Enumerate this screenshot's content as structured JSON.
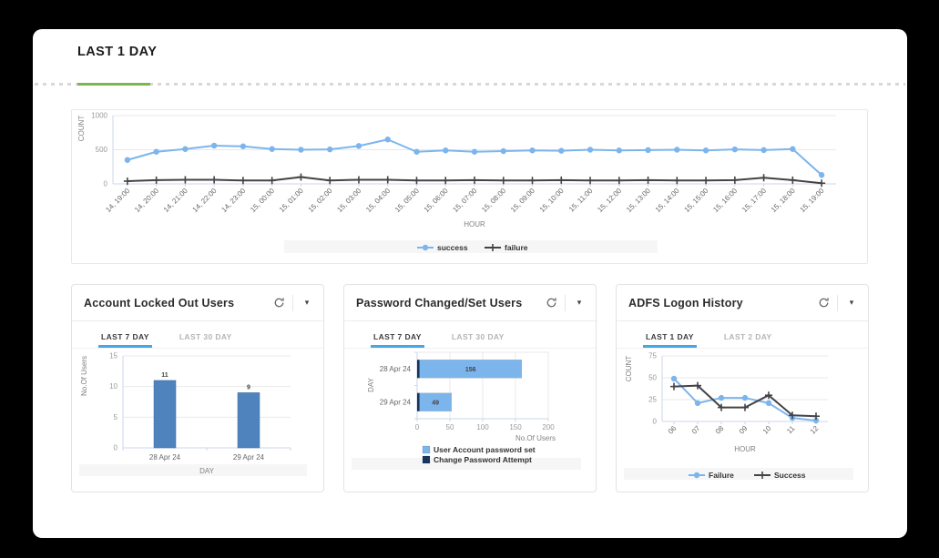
{
  "page": {
    "title": "LAST 1 DAY"
  },
  "icons": {
    "refresh": "refresh-icon",
    "caret": "▾"
  },
  "colors": {
    "accent_green": "#7eb54e",
    "tab_active_underline": "#45a7e8",
    "line_blue": "#7cb5ec",
    "line_dark": "#434348",
    "bar_blue": "#4e83bd",
    "stack_light_blue": "#7cb5ec",
    "stack_dark_navy": "#17375e"
  },
  "panels": [
    {
      "title": "Account Locked Out Users",
      "tabs": [
        {
          "label": "LAST 7 DAY",
          "active": true
        },
        {
          "label": "LAST 30 DAY",
          "active": false
        }
      ]
    },
    {
      "title": "Password Changed/Set Users",
      "tabs": [
        {
          "label": "LAST 7 DAY",
          "active": true
        },
        {
          "label": "LAST 30 DAY",
          "active": false
        }
      ]
    },
    {
      "title": "ADFS Logon History",
      "tabs": [
        {
          "label": "LAST 1 DAY",
          "active": true
        },
        {
          "label": "LAST 2 DAY",
          "active": false
        }
      ]
    }
  ],
  "chart_data": [
    {
      "type": "line",
      "categories": [
        "14, 19:00",
        "14, 20:00",
        "14, 21:00",
        "14, 22:00",
        "14, 23:00",
        "15, 00:00",
        "15, 01:00",
        "15, 02:00",
        "15, 03:00",
        "15, 04:00",
        "15, 05:00",
        "15, 06:00",
        "15, 07:00",
        "15, 08:00",
        "15, 09:00",
        "15, 10:00",
        "15, 11:00",
        "15, 12:00",
        "15, 13:00",
        "15, 14:00",
        "15, 15:00",
        "15, 16:00",
        "15, 17:00",
        "15, 18:00",
        "15, 19:00"
      ],
      "series": [
        {
          "name": "success",
          "color": "#7cb5ec",
          "marker": "circle",
          "values": [
            350,
            470,
            510,
            560,
            550,
            510,
            500,
            505,
            555,
            650,
            470,
            490,
            470,
            480,
            490,
            485,
            500,
            490,
            495,
            500,
            490,
            505,
            495,
            510,
            130
          ]
        },
        {
          "name": "failure",
          "color": "#434348",
          "marker": "plus",
          "values": [
            40,
            55,
            60,
            60,
            50,
            50,
            100,
            50,
            60,
            60,
            50,
            50,
            55,
            50,
            50,
            55,
            50,
            50,
            55,
            50,
            50,
            55,
            90,
            55,
            10
          ]
        }
      ],
      "xlabel": "HOUR",
      "ylabel": "COUNT",
      "ylim": [
        0,
        1000
      ],
      "yticks": [
        0,
        500,
        1000
      ],
      "grid": true,
      "legend_position": "bottom"
    },
    {
      "type": "bar",
      "categories": [
        "28 Apr 24",
        "29 Apr 24"
      ],
      "values": [
        11,
        9
      ],
      "bar_color": "#4e83bd",
      "data_labels": [
        11,
        9
      ],
      "xlabel": "DAY",
      "ylabel": "No.Of Users",
      "ylim": [
        0,
        15
      ],
      "yticks": [
        0,
        5,
        10,
        15
      ],
      "grid": true
    },
    {
      "type": "bar",
      "orientation": "horizontal-stacked",
      "categories": [
        "28 Apr 24",
        "29 Apr 24"
      ],
      "series": [
        {
          "name": "Change Password Attempt",
          "color": "#17375e",
          "values": [
            1,
            1
          ]
        },
        {
          "name": "User Account password set",
          "color": "#7cb5ec",
          "values": [
            156,
            49
          ]
        }
      ],
      "xlabel": "No.Of Users",
      "ylabel": "DAY",
      "xlim": [
        0,
        200
      ],
      "xticks": [
        0,
        50,
        100,
        150,
        200
      ],
      "grid": true,
      "legend_position": "bottom"
    },
    {
      "type": "line",
      "categories": [
        "06",
        "07",
        "08",
        "09",
        "10",
        "11",
        "12"
      ],
      "series": [
        {
          "name": "Failure",
          "color": "#7cb5ec",
          "marker": "circle",
          "values": [
            49,
            21,
            27,
            27,
            21,
            4,
            1
          ]
        },
        {
          "name": "Success",
          "color": "#434348",
          "marker": "plus",
          "values": [
            40,
            41,
            16,
            16,
            30,
            7,
            6
          ]
        }
      ],
      "xlabel": "HOUR",
      "ylabel": "COUNT",
      "ylim": [
        0,
        75
      ],
      "yticks": [
        0,
        25,
        50,
        75
      ],
      "grid": true,
      "legend_position": "bottom"
    }
  ]
}
